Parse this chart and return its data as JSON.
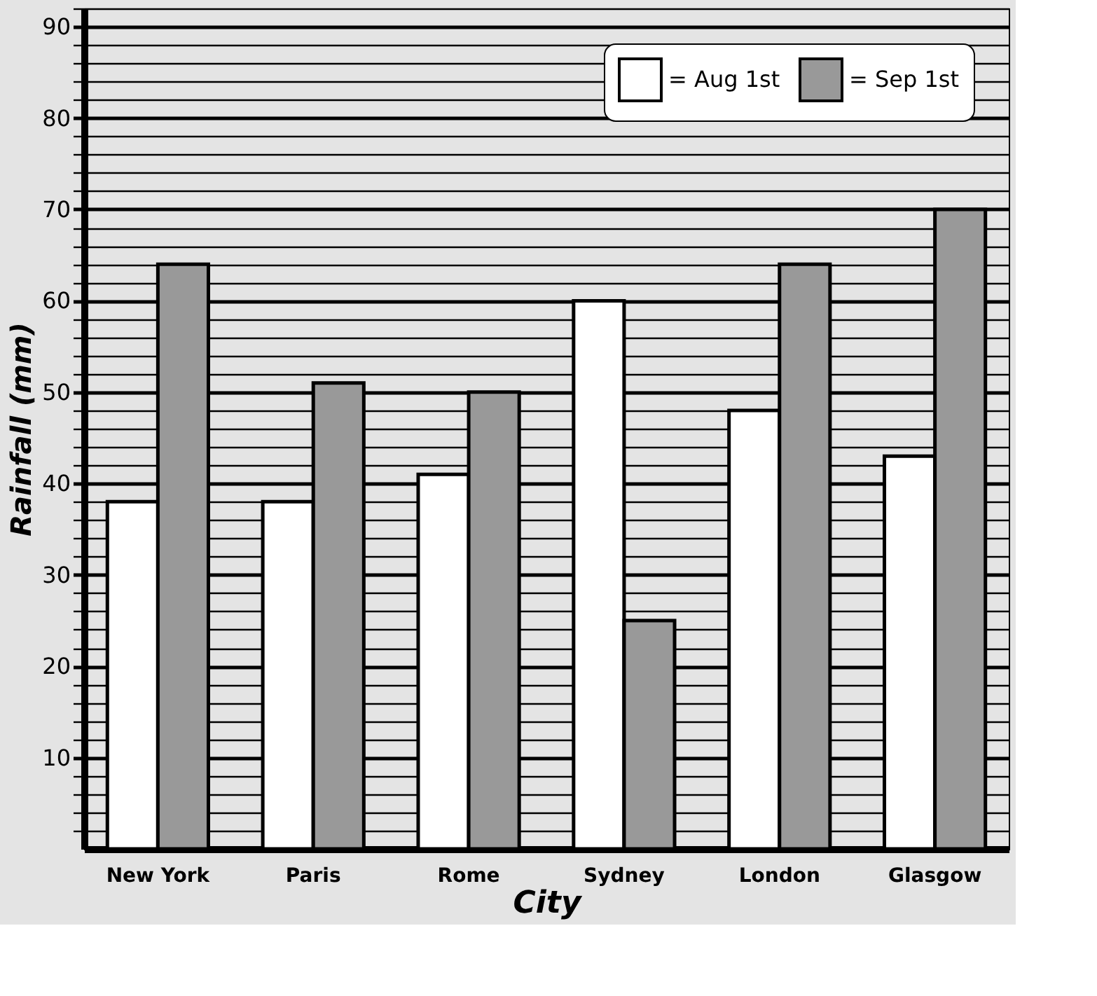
{
  "chart_data": {
    "type": "bar",
    "xlabel": "City",
    "ylabel": "Rainfall (mm)",
    "categories": [
      "New York",
      "Paris",
      "Rome",
      "Sydney",
      "London",
      "Glasgow"
    ],
    "series": [
      {
        "name": "= Aug 1st",
        "color": "#ffffff",
        "values": [
          38,
          38,
          41,
          60,
          48,
          43
        ]
      },
      {
        "name": "= Sep 1st",
        "color": "#999999",
        "values": [
          64,
          51,
          50,
          25,
          64,
          70
        ]
      }
    ],
    "ylim": [
      0,
      92
    ],
    "yticks": [
      {
        "value": 2,
        "label": null
      },
      {
        "value": 4,
        "label": null
      },
      {
        "value": 6,
        "label": null
      },
      {
        "value": 8,
        "label": null
      },
      10,
      {
        "value": 12,
        "label": null
      },
      {
        "value": 14,
        "label": null
      },
      {
        "value": 16,
        "label": null
      },
      {
        "value": 18,
        "label": null
      },
      20,
      {
        "value": 22,
        "label": null
      },
      {
        "value": 24,
        "label": null
      },
      {
        "value": 26,
        "label": null
      },
      {
        "value": 28,
        "label": null
      },
      30,
      {
        "value": 32,
        "label": null
      },
      {
        "value": 34,
        "label": null
      },
      {
        "value": 36,
        "label": null
      },
      {
        "value": 38,
        "label": null
      },
      40,
      {
        "value": 42,
        "label": null
      },
      {
        "value": 44,
        "label": null
      },
      {
        "value": 46,
        "label": null
      },
      {
        "value": 48,
        "label": null
      },
      50,
      {
        "value": 52,
        "label": null
      },
      {
        "value": 54,
        "label": null
      },
      {
        "value": 56,
        "label": null
      },
      {
        "value": 58,
        "label": null
      },
      60,
      {
        "value": 62,
        "label": null
      },
      {
        "value": 64,
        "label": null
      },
      {
        "value": 66,
        "label": null
      },
      {
        "value": 68,
        "label": null
      },
      70,
      {
        "value": 72,
        "label": null
      },
      {
        "value": 74,
        "label": null
      },
      {
        "value": 76,
        "label": null
      },
      {
        "value": 78,
        "label": null
      },
      80,
      {
        "value": 82,
        "label": null
      },
      {
        "value": 84,
        "label": null
      },
      {
        "value": 86,
        "label": null
      },
      {
        "value": 88,
        "label": null
      },
      90,
      {
        "value": 92,
        "label": null
      }
    ],
    "grid": "y",
    "legend": "top right"
  }
}
